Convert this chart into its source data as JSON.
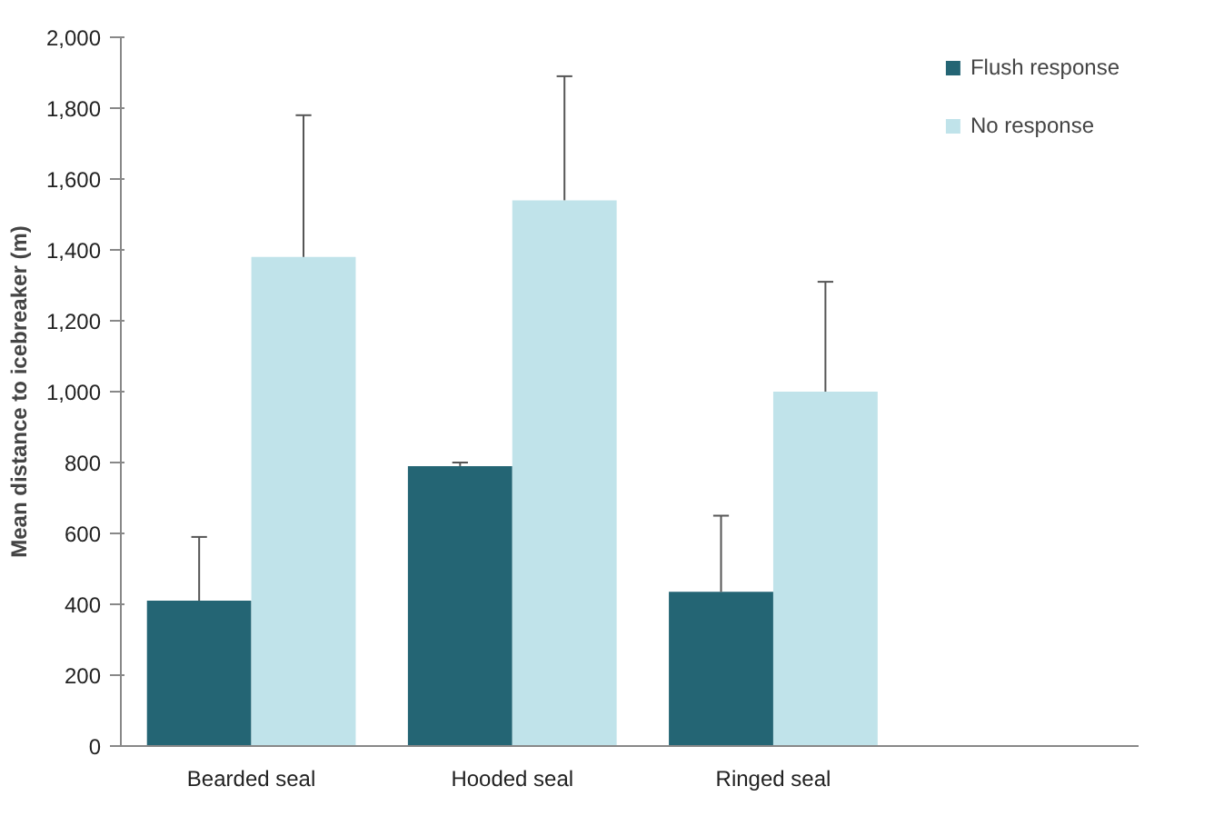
{
  "chart_data": {
    "type": "bar",
    "ylabel": "Mean distance to icebreaker (m)",
    "categories": [
      "Bearded seal",
      "Hooded seal",
      "Ringed seal"
    ],
    "series": [
      {
        "name": "Flush response",
        "color": "#246574",
        "values": [
          410,
          790,
          435
        ],
        "errors": [
          [
            410,
            590
          ],
          [
            790,
            800
          ],
          [
            435,
            650
          ]
        ]
      },
      {
        "name": "No response",
        "color": "#c0e3ea",
        "values": [
          1380,
          1540,
          1000
        ],
        "errors": [
          [
            1380,
            1780
          ],
          [
            1540,
            1890
          ],
          [
            1000,
            1310
          ]
        ]
      }
    ],
    "ylim": [
      0,
      2000
    ],
    "yticks": [
      {
        "value": 0,
        "label": "0"
      },
      {
        "value": 200,
        "label": "200"
      },
      {
        "value": 400,
        "label": "400"
      },
      {
        "value": 600,
        "label": "600"
      },
      {
        "value": 800,
        "label": "800"
      },
      {
        "value": 1000,
        "label": "1,000"
      },
      {
        "value": 1200,
        "label": "1,200"
      },
      {
        "value": 1400,
        "label": "1,400"
      },
      {
        "value": 1600,
        "label": "1,600"
      },
      {
        "value": 1800,
        "label": "1,800"
      },
      {
        "value": 2000,
        "label": "2,000"
      }
    ],
    "grid": false,
    "legend": "right"
  }
}
